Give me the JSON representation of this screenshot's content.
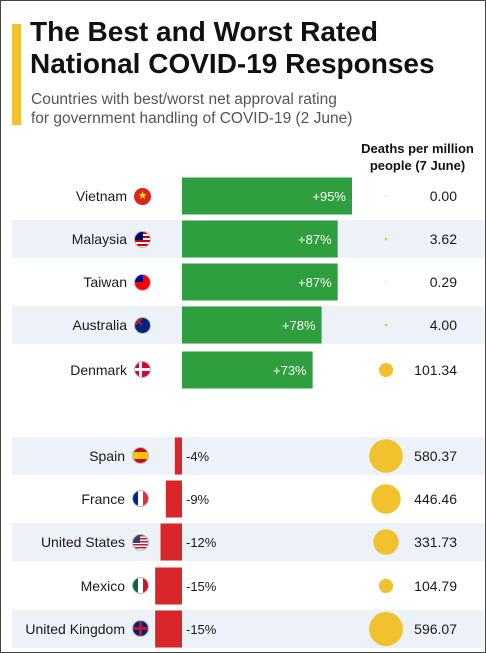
{
  "header": {
    "title_line1": "The Best and Worst Rated",
    "title_line2": "National COVID-19 Responses",
    "subtitle_line1": "Countries with best/worst net approval rating",
    "subtitle_line2": "for government handling of COVID-19 (2 June)",
    "deaths_header_line1": "Deaths per million",
    "deaths_header_line2": "people (7 June)"
  },
  "colors": {
    "positive": "#2e9e3e",
    "negative": "#d9262b",
    "bubble": "#f2c12e",
    "stripe": "#edf1f8",
    "accent": "#f2c12e"
  },
  "chart_data": {
    "type": "bar",
    "orientation": "horizontal",
    "groups": [
      "best",
      "worst"
    ],
    "categories": [
      "Vietnam",
      "Malaysia",
      "Taiwan",
      "Australia",
      "Denmark",
      "Spain",
      "France",
      "United States",
      "Mexico",
      "United Kingdom"
    ],
    "series": [
      {
        "values": [
          95,
          87,
          87,
          78,
          73,
          -4,
          -9,
          -12,
          -15,
          -15
        ],
        "labels": [
          "+95%",
          "+87%",
          "+87%",
          "+78%",
          "+73%",
          "-4%",
          "-9%",
          "-12%",
          "-15%",
          "-15%"
        ]
      },
      {
        "values": [
          0.0,
          3.62,
          0.29,
          4.0,
          101.34,
          580.37,
          446.46,
          331.73,
          104.79,
          596.07
        ],
        "labels": [
          "0.00",
          "3.62",
          "0.29",
          "4.00",
          "101.34",
          "580.37",
          "446.46",
          "331.73",
          "104.79",
          "596.07"
        ]
      }
    ]
  }
}
